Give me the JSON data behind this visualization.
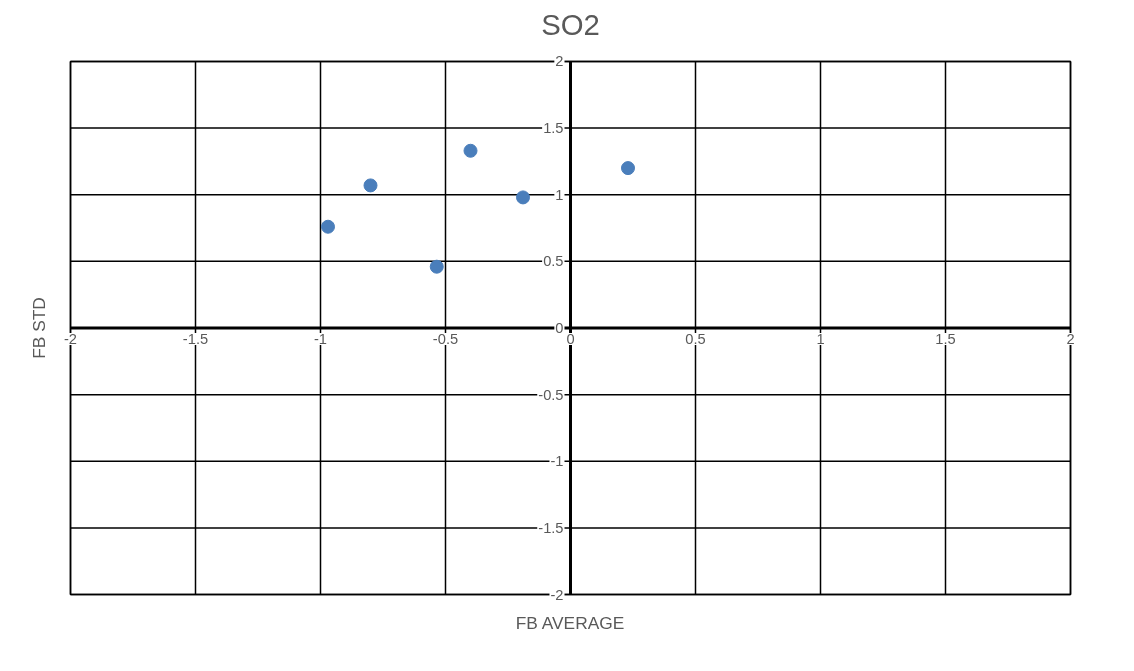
{
  "chart_data": {
    "type": "scatter",
    "title": "SO2",
    "xlabel": "FB AVERAGE",
    "ylabel": "FB STD",
    "x": [
      -0.97,
      -0.8,
      -0.535,
      -0.4,
      -0.19,
      0.23
    ],
    "series": [
      {
        "color": "#4a7ebb",
        "values": [
          0.76,
          1.07,
          0.46,
          1.33,
          0.98,
          1.2
        ]
      }
    ],
    "xlim": [
      -2,
      2
    ],
    "ylim": [
      -2,
      2
    ],
    "xticks": [
      -2,
      -1.5,
      -1,
      -0.5,
      0,
      0.5,
      1,
      1.5,
      2
    ],
    "yticks": [
      -2,
      -1.5,
      -1,
      -0.5,
      0,
      0.5,
      1,
      1.5,
      2
    ],
    "grid": true,
    "marker": "circle"
  }
}
